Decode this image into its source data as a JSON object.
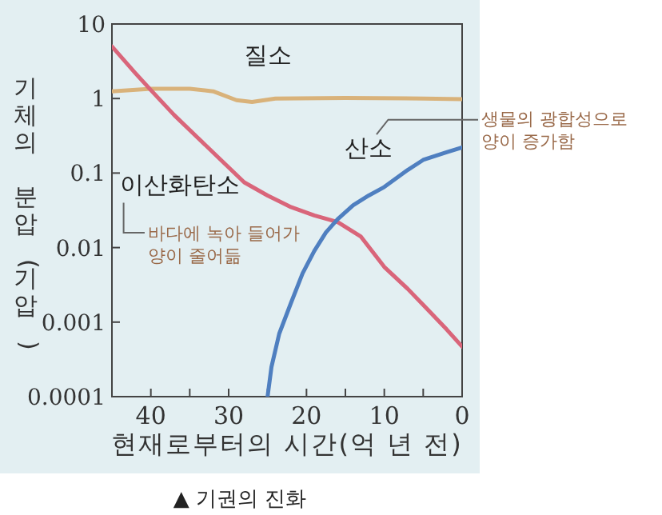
{
  "chart_data": {
    "type": "line",
    "title": "▲ 기권의 진화",
    "xlabel": "현재로부터의 시간(억 년 전)",
    "ylabel": "기체의 분압(기압)",
    "log": "y",
    "xlim": [
      45,
      0
    ],
    "ylim": [
      0.0001,
      10
    ],
    "xticks": [
      40,
      {
        "value": 35,
        "label": null
      },
      30,
      {
        "value": 25,
        "label": null
      },
      20,
      {
        "value": 15,
        "label": null
      },
      10,
      {
        "value": 5,
        "label": null
      },
      0
    ],
    "yticks": [
      0.0001,
      0.001,
      0.01,
      0.1,
      1,
      10
    ],
    "grid": false,
    "legend": false,
    "marker": "none",
    "line_style": "solid",
    "series": [
      {
        "name": "질소",
        "color": "#d9b27a",
        "x": [
          45,
          40,
          35,
          32,
          29,
          27,
          24,
          15,
          5,
          0
        ],
        "values": [
          1.25,
          1.35,
          1.35,
          1.25,
          0.95,
          0.9,
          1.0,
          1.02,
          1.0,
          0.98
        ]
      },
      {
        "name": "이산화탄소",
        "color": "#d9657a",
        "x": [
          45,
          42,
          40,
          37,
          34,
          31,
          28,
          25,
          22,
          19,
          16,
          13,
          10,
          7,
          5,
          2,
          0
        ],
        "values": [
          5,
          2.2,
          1.3,
          0.6,
          0.3,
          0.15,
          0.075,
          0.05,
          0.035,
          0.027,
          0.022,
          0.014,
          0.0055,
          0.0028,
          0.0017,
          0.0008,
          0.00047
        ]
      },
      {
        "name": "산소",
        "color": "#4f7fc0",
        "x": [
          25,
          24.5,
          23.5,
          22,
          20.5,
          19,
          17.5,
          16,
          14,
          12,
          10,
          7,
          5,
          2,
          0
        ],
        "values": [
          0.0001,
          0.00025,
          0.0007,
          0.0018,
          0.0045,
          0.009,
          0.016,
          0.024,
          0.037,
          0.05,
          0.065,
          0.11,
          0.15,
          0.19,
          0.22
        ]
      }
    ],
    "annotations": [
      "바다에 녹아 들어가\n양이 줄어듦",
      "생물의 광합성으로\n양이 증가함"
    ]
  }
}
